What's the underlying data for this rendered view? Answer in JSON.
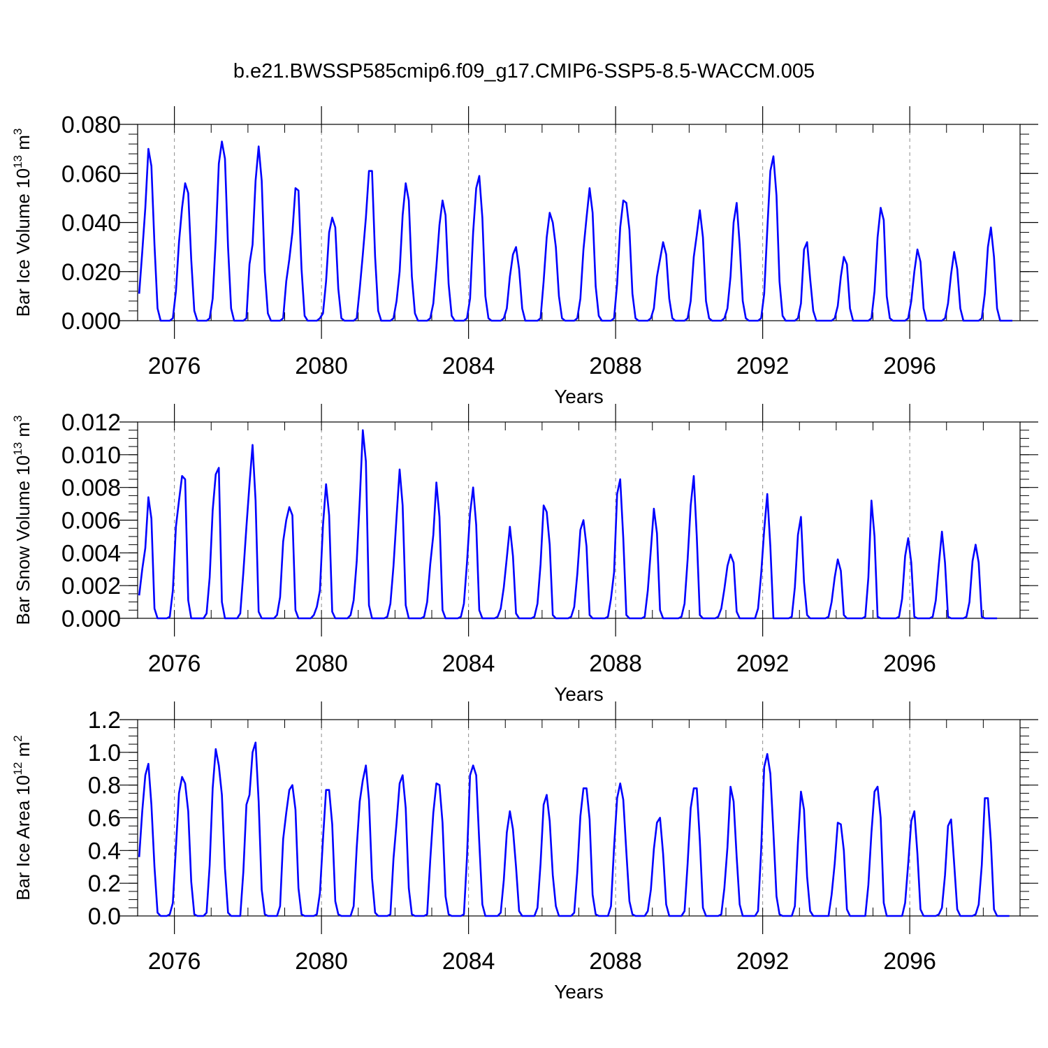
{
  "figure": {
    "title": "b.e21.BWSSP585cmip6.f09_g17.CMIP6-SSP5-8.5-WACCM.005"
  },
  "chart_data": [
    {
      "type": "line",
      "title": "",
      "xlabel": "Years",
      "ylabel": {
        "prefix": "Bar Ice Volume 10",
        "exponent": "13",
        "unit": " m",
        "unit_exponent": "3"
      },
      "xlim": [
        2075.0,
        2099.0
      ],
      "ylim": [
        0.0,
        0.08
      ],
      "x_ticks": [
        2076,
        2080,
        2084,
        2088,
        2092,
        2096
      ],
      "x_tick_labels": [
        "2076",
        "2080",
        "2084",
        "2088",
        "2092",
        "2096"
      ],
      "y_ticks": [
        0.0,
        0.02,
        0.04,
        0.06,
        0.08
      ],
      "y_tick_labels": [
        "0.000",
        "0.020",
        "0.040",
        "0.060",
        "0.080"
      ],
      "y_minor_step": 0.004,
      "grid": "dashed vertical at year ticks",
      "color": "#0000ff",
      "x_start": 2075.0417,
      "x_step": 0.0833333,
      "peaks": [
        0.07,
        0.056,
        0.073,
        0.071,
        0.054,
        0.042,
        0.061,
        0.056,
        0.049,
        0.059,
        0.03,
        0.044,
        0.054,
        0.049,
        0.032,
        0.045,
        0.048,
        0.067,
        0.033,
        0.026,
        0.046,
        0.029,
        0.028,
        0.038
      ],
      "values": [
        0.011,
        0.028,
        0.046,
        0.07,
        0.063,
        0.031,
        0.005,
        0.0,
        0.0,
        0.0,
        0.0,
        0.001,
        0.012,
        0.032,
        0.046,
        0.056,
        0.052,
        0.025,
        0.004,
        0.0,
        0.0,
        0.0,
        0.0,
        0.001,
        0.009,
        0.033,
        0.064,
        0.073,
        0.066,
        0.03,
        0.005,
        0.0,
        0.0,
        0.0,
        0.0,
        0.001,
        0.023,
        0.031,
        0.057,
        0.071,
        0.057,
        0.02,
        0.003,
        0.0,
        0.0,
        0.0,
        0.0,
        0.001,
        0.016,
        0.025,
        0.036,
        0.054,
        0.053,
        0.021,
        0.002,
        0.0,
        0.0,
        0.0,
        0.0,
        0.001,
        0.003,
        0.016,
        0.036,
        0.042,
        0.038,
        0.013,
        0.001,
        0.0,
        0.0,
        0.0,
        0.0,
        0.001,
        0.013,
        0.027,
        0.042,
        0.061,
        0.061,
        0.026,
        0.004,
        0.0,
        0.0,
        0.0,
        0.0,
        0.001,
        0.008,
        0.02,
        0.043,
        0.056,
        0.049,
        0.018,
        0.003,
        0.0,
        0.0,
        0.0,
        0.0,
        0.001,
        0.007,
        0.022,
        0.039,
        0.049,
        0.043,
        0.015,
        0.002,
        0.0,
        0.0,
        0.0,
        0.0,
        0.001,
        0.009,
        0.036,
        0.054,
        0.059,
        0.042,
        0.01,
        0.001,
        0.0,
        0.0,
        0.0,
        0.0,
        0.001,
        0.005,
        0.018,
        0.027,
        0.03,
        0.021,
        0.005,
        0.0,
        0.0,
        0.0,
        0.0,
        0.0,
        0.001,
        0.016,
        0.034,
        0.044,
        0.04,
        0.03,
        0.01,
        0.001,
        0.0,
        0.0,
        0.0,
        0.0,
        0.001,
        0.009,
        0.029,
        0.042,
        0.054,
        0.044,
        0.014,
        0.002,
        0.0,
        0.0,
        0.0,
        0.0,
        0.001,
        0.015,
        0.038,
        0.049,
        0.048,
        0.037,
        0.011,
        0.001,
        0.0,
        0.0,
        0.0,
        0.0,
        0.001,
        0.005,
        0.018,
        0.025,
        0.032,
        0.027,
        0.009,
        0.001,
        0.0,
        0.0,
        0.0,
        0.0,
        0.001,
        0.008,
        0.026,
        0.035,
        0.045,
        0.034,
        0.008,
        0.001,
        0.0,
        0.0,
        0.0,
        0.0,
        0.001,
        0.005,
        0.018,
        0.04,
        0.048,
        0.031,
        0.008,
        0.001,
        0.0,
        0.0,
        0.0,
        0.0,
        0.001,
        0.011,
        0.037,
        0.061,
        0.067,
        0.051,
        0.016,
        0.002,
        0.0,
        0.0,
        0.0,
        0.0,
        0.001,
        0.007,
        0.029,
        0.032,
        0.017,
        0.004,
        0.0,
        0.0,
        0.0,
        0.0,
        0.0,
        0.0,
        0.001,
        0.006,
        0.018,
        0.026,
        0.023,
        0.005,
        0.0,
        0.0,
        0.0,
        0.0,
        0.0,
        0.0,
        0.001,
        0.012,
        0.034,
        0.046,
        0.041,
        0.01,
        0.001,
        0.0,
        0.0,
        0.0,
        0.0,
        0.0,
        0.001,
        0.008,
        0.02,
        0.029,
        0.024,
        0.005,
        0.0,
        0.0,
        0.0,
        0.0,
        0.0,
        0.0,
        0.001,
        0.007,
        0.019,
        0.028,
        0.021,
        0.005,
        0.0,
        0.0,
        0.0,
        0.0,
        0.0,
        0.0,
        0.001,
        0.011,
        0.03,
        0.038,
        0.026,
        0.005,
        0.0,
        0.0,
        0.0,
        0.0,
        0.0
      ]
    },
    {
      "type": "line",
      "title": "",
      "xlabel": "Years",
      "ylabel": {
        "prefix": "Bar Snow Volume 10",
        "exponent": "13",
        "unit": " m",
        "unit_exponent": "3"
      },
      "xlim": [
        2075.0,
        2099.0
      ],
      "ylim": [
        0.0,
        0.012
      ],
      "x_ticks": [
        2076,
        2080,
        2084,
        2088,
        2092,
        2096
      ],
      "x_tick_labels": [
        "2076",
        "2080",
        "2084",
        "2088",
        "2092",
        "2096"
      ],
      "y_ticks": [
        0.0,
        0.002,
        0.004,
        0.006,
        0.008,
        0.01,
        0.012
      ],
      "y_tick_labels": [
        "0.000",
        "0.002",
        "0.004",
        "0.006",
        "0.008",
        "0.010",
        "0.012"
      ],
      "y_minor_step": 0.0005,
      "grid": "dashed vertical at year ticks",
      "color": "#0000ff",
      "x_start": 2075.0417,
      "x_step": 0.0833333,
      "peaks": [
        0.0074,
        0.0087,
        0.0092,
        0.0106,
        0.0068,
        0.0082,
        0.0115,
        0.0091,
        0.0083,
        0.008,
        0.0056,
        0.0069,
        0.006,
        0.0085,
        0.0067,
        0.0087,
        0.0039,
        0.0076,
        0.0062,
        0.0036,
        0.0072,
        0.0049,
        0.0053,
        0.0045
      ],
      "values": [
        0.0014,
        0.003,
        0.0043,
        0.0074,
        0.0061,
        0.0006,
        0.0,
        0.0,
        0.0,
        0.0,
        0.0001,
        0.0017,
        0.0056,
        0.0072,
        0.0087,
        0.0085,
        0.0011,
        0.0,
        0.0,
        0.0,
        0.0,
        0.0,
        0.0003,
        0.0025,
        0.0066,
        0.0088,
        0.0092,
        0.001,
        0.0,
        0.0,
        0.0,
        0.0,
        0.0,
        0.0003,
        0.0028,
        0.0056,
        0.0082,
        0.0106,
        0.0072,
        0.0004,
        0.0,
        0.0,
        0.0,
        0.0,
        0.0,
        0.0002,
        0.0013,
        0.0047,
        0.006,
        0.0068,
        0.0063,
        0.0005,
        0.0,
        0.0,
        0.0,
        0.0,
        0.0,
        0.0002,
        0.0007,
        0.0017,
        0.0057,
        0.0082,
        0.0063,
        0.0004,
        0.0,
        0.0,
        0.0,
        0.0,
        0.0,
        0.0002,
        0.0011,
        0.0035,
        0.0072,
        0.0115,
        0.0096,
        0.0008,
        0.0,
        0.0,
        0.0,
        0.0,
        0.0,
        0.0001,
        0.0009,
        0.0032,
        0.0062,
        0.0091,
        0.0069,
        0.0008,
        0.0,
        0.0,
        0.0,
        0.0,
        0.0,
        0.0001,
        0.001,
        0.0033,
        0.0051,
        0.0083,
        0.0062,
        0.0005,
        0.0,
        0.0,
        0.0,
        0.0,
        0.0,
        0.0001,
        0.0009,
        0.0034,
        0.0064,
        0.008,
        0.0057,
        0.0005,
        0.0,
        0.0,
        0.0,
        0.0,
        0.0,
        0.0001,
        0.0006,
        0.0019,
        0.0037,
        0.0056,
        0.0038,
        0.0003,
        0.0,
        0.0,
        0.0,
        0.0,
        0.0,
        0.0001,
        0.0009,
        0.0033,
        0.0069,
        0.0065,
        0.0045,
        0.0002,
        0.0,
        0.0,
        0.0,
        0.0,
        0.0,
        0.0001,
        0.0007,
        0.0027,
        0.0054,
        0.006,
        0.0044,
        0.0002,
        0.0,
        0.0,
        0.0,
        0.0,
        0.0,
        0.0001,
        0.0012,
        0.0028,
        0.0076,
        0.0085,
        0.0049,
        0.0002,
        0.0,
        0.0,
        0.0,
        0.0,
        0.0,
        0.0001,
        0.0017,
        0.0042,
        0.0067,
        0.0052,
        0.0005,
        0.0,
        0.0,
        0.0,
        0.0,
        0.0,
        0.0,
        0.0001,
        0.0009,
        0.0036,
        0.0069,
        0.0087,
        0.005,
        0.0002,
        0.0,
        0.0,
        0.0,
        0.0,
        0.0,
        0.0001,
        0.0006,
        0.0018,
        0.0032,
        0.0039,
        0.0034,
        0.0004,
        0.0,
        0.0,
        0.0,
        0.0,
        0.0,
        0.0,
        0.0006,
        0.0027,
        0.0054,
        0.0076,
        0.0044,
        0.0,
        0.0,
        0.0,
        0.0,
        0.0,
        0.0,
        0.0001,
        0.0019,
        0.0051,
        0.0062,
        0.0022,
        0.0002,
        0.0,
        0.0,
        0.0,
        0.0,
        0.0,
        0.0,
        0.0001,
        0.001,
        0.0025,
        0.0036,
        0.0029,
        0.0002,
        0.0,
        0.0,
        0.0,
        0.0,
        0.0,
        0.0,
        0.0001,
        0.0025,
        0.0072,
        0.005,
        0.0001,
        0.0,
        0.0,
        0.0,
        0.0,
        0.0,
        0.0,
        0.0001,
        0.0012,
        0.0038,
        0.0049,
        0.0034,
        0.0001,
        0.0,
        0.0,
        0.0,
        0.0,
        0.0,
        0.0001,
        0.0011,
        0.0033,
        0.0053,
        0.0034,
        0.0001,
        0.0,
        0.0,
        0.0,
        0.0,
        0.0,
        0.0001,
        0.001,
        0.0035,
        0.0045,
        0.0034,
        0.0001,
        0.0,
        0.0,
        0.0,
        0.0,
        0.0
      ]
    },
    {
      "type": "line",
      "title": "",
      "xlabel": "Years",
      "ylabel": {
        "prefix": "Bar Ice Area 10",
        "exponent": "12",
        "unit": " m",
        "unit_exponent": "2"
      },
      "xlim": [
        2075.0,
        2099.0
      ],
      "ylim": [
        0.0,
        1.2
      ],
      "x_ticks": [
        2076,
        2080,
        2084,
        2088,
        2092,
        2096
      ],
      "x_tick_labels": [
        "2076",
        "2080",
        "2084",
        "2088",
        "2092",
        "2096"
      ],
      "y_ticks": [
        0.0,
        0.2,
        0.4,
        0.6,
        0.8,
        1.0,
        1.2
      ],
      "y_tick_labels": [
        "0.0",
        "0.2",
        "0.4",
        "0.6",
        "0.8",
        "1.0",
        "1.2"
      ],
      "y_minor_step": 0.05,
      "grid": "dashed vertical at year ticks",
      "color": "#0000ff",
      "x_start": 2075.0417,
      "x_step": 0.0833333,
      "peaks": [
        0.93,
        0.85,
        1.02,
        1.06,
        0.8,
        0.77,
        0.92,
        0.86,
        0.81,
        0.92,
        0.64,
        0.74,
        0.78,
        0.81,
        0.6,
        0.78,
        0.79,
        0.99,
        0.76,
        0.57,
        0.79,
        0.64,
        0.59,
        0.72
      ],
      "values": [
        0.36,
        0.64,
        0.86,
        0.93,
        0.68,
        0.3,
        0.02,
        0.0,
        0.0,
        0.0,
        0.01,
        0.08,
        0.42,
        0.75,
        0.85,
        0.81,
        0.64,
        0.21,
        0.01,
        0.0,
        0.0,
        0.0,
        0.02,
        0.31,
        0.78,
        1.02,
        0.92,
        0.74,
        0.29,
        0.02,
        0.0,
        0.0,
        0.0,
        0.0,
        0.27,
        0.68,
        0.74,
        1.0,
        1.06,
        0.7,
        0.16,
        0.01,
        0.0,
        0.0,
        0.0,
        0.0,
        0.06,
        0.47,
        0.63,
        0.77,
        0.8,
        0.65,
        0.17,
        0.01,
        0.0,
        0.0,
        0.0,
        0.0,
        0.01,
        0.14,
        0.47,
        0.77,
        0.77,
        0.56,
        0.09,
        0.01,
        0.0,
        0.0,
        0.0,
        0.0,
        0.06,
        0.42,
        0.7,
        0.83,
        0.92,
        0.71,
        0.23,
        0.02,
        0.0,
        0.0,
        0.0,
        0.0,
        0.01,
        0.35,
        0.57,
        0.81,
        0.86,
        0.66,
        0.17,
        0.01,
        0.0,
        0.0,
        0.0,
        0.0,
        0.01,
        0.34,
        0.63,
        0.81,
        0.8,
        0.57,
        0.12,
        0.01,
        0.0,
        0.0,
        0.0,
        0.0,
        0.01,
        0.36,
        0.86,
        0.92,
        0.86,
        0.45,
        0.07,
        0.0,
        0.0,
        0.0,
        0.0,
        0.0,
        0.02,
        0.22,
        0.51,
        0.64,
        0.53,
        0.3,
        0.03,
        0.0,
        0.0,
        0.0,
        0.0,
        0.0,
        0.05,
        0.32,
        0.68,
        0.74,
        0.58,
        0.25,
        0.06,
        0.0,
        0.0,
        0.0,
        0.0,
        0.0,
        0.02,
        0.27,
        0.61,
        0.78,
        0.78,
        0.59,
        0.13,
        0.01,
        0.0,
        0.0,
        0.0,
        0.0,
        0.06,
        0.42,
        0.72,
        0.81,
        0.71,
        0.39,
        0.09,
        0.01,
        0.0,
        0.0,
        0.0,
        0.0,
        0.03,
        0.16,
        0.41,
        0.57,
        0.6,
        0.38,
        0.07,
        0.0,
        0.0,
        0.0,
        0.0,
        0.0,
        0.03,
        0.32,
        0.66,
        0.78,
        0.78,
        0.46,
        0.05,
        0.0,
        0.0,
        0.0,
        0.0,
        0.0,
        0.01,
        0.17,
        0.42,
        0.79,
        0.7,
        0.36,
        0.07,
        0.0,
        0.0,
        0.0,
        0.0,
        0.0,
        0.03,
        0.4,
        0.91,
        0.99,
        0.87,
        0.51,
        0.12,
        0.01,
        0.0,
        0.0,
        0.0,
        0.0,
        0.06,
        0.45,
        0.76,
        0.65,
        0.24,
        0.03,
        0.0,
        0.0,
        0.0,
        0.0,
        0.0,
        0.0,
        0.13,
        0.32,
        0.57,
        0.56,
        0.4,
        0.04,
        0.0,
        0.0,
        0.0,
        0.0,
        0.0,
        0.0,
        0.19,
        0.51,
        0.76,
        0.79,
        0.6,
        0.08,
        0.0,
        0.0,
        0.0,
        0.0,
        0.0,
        0.0,
        0.08,
        0.32,
        0.58,
        0.64,
        0.38,
        0.04,
        0.0,
        0.0,
        0.0,
        0.0,
        0.0,
        0.01,
        0.05,
        0.25,
        0.55,
        0.59,
        0.32,
        0.04,
        0.0,
        0.0,
        0.0,
        0.0,
        0.0,
        0.01,
        0.07,
        0.31,
        0.72,
        0.72,
        0.45,
        0.04,
        0.0,
        0.0,
        0.0,
        0.0,
        0.0
      ]
    }
  ]
}
